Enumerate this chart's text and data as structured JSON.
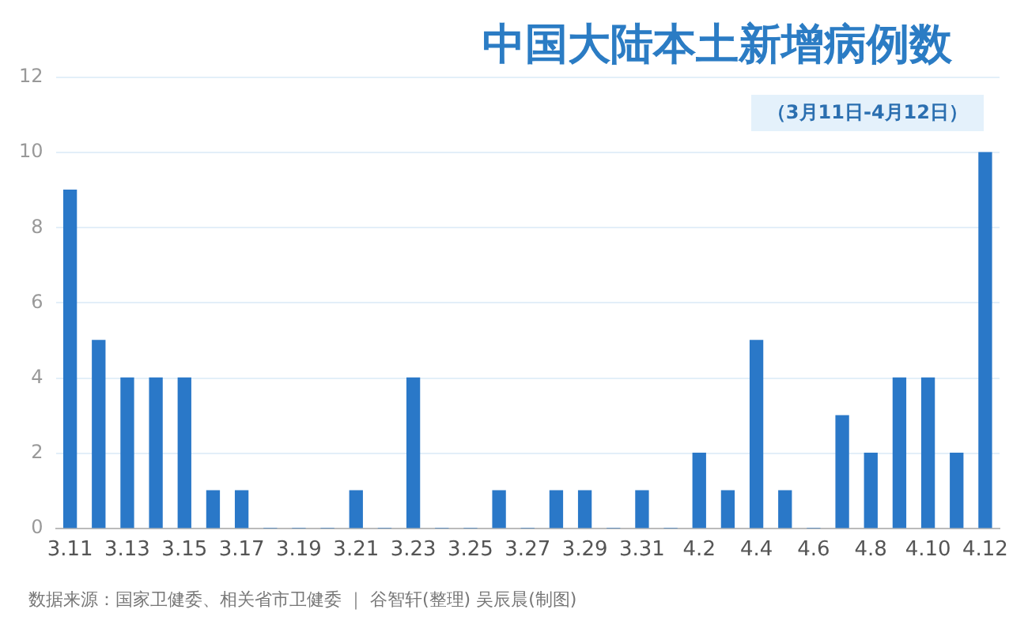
{
  "chart_data": {
    "type": "bar",
    "title": "中国大陆本土新增病例数",
    "subtitle": "（3月11日-4月12日）",
    "categories": [
      "3.11",
      null,
      "3.13",
      null,
      "3.15",
      null,
      "3.17",
      null,
      "3.19",
      null,
      "3.21",
      null,
      "3.23",
      null,
      "3.25",
      null,
      "3.27",
      null,
      "3.29",
      null,
      "3.31",
      null,
      "4.2",
      null,
      "4.4",
      null,
      "4.6",
      null,
      "4.8",
      null,
      "4.10",
      null,
      "4.12"
    ],
    "values": [
      9,
      5,
      4,
      4,
      4,
      1,
      1,
      0,
      0,
      0,
      1,
      0,
      4,
      0,
      0,
      1,
      0,
      1,
      1,
      0,
      1,
      0,
      2,
      1,
      5,
      1,
      0,
      3,
      2,
      4,
      4,
      2,
      10
    ],
    "color": "#2a78c8",
    "ylim": [
      0,
      12
    ],
    "yticks": [
      0,
      2,
      4,
      6,
      8,
      10,
      12
    ],
    "grid": "y",
    "annotations": [
      "数据来源：国家卫健委、相关省市卫健委 ｜ 谷智轩(整理) 吴辰晨(制图)"
    ]
  }
}
